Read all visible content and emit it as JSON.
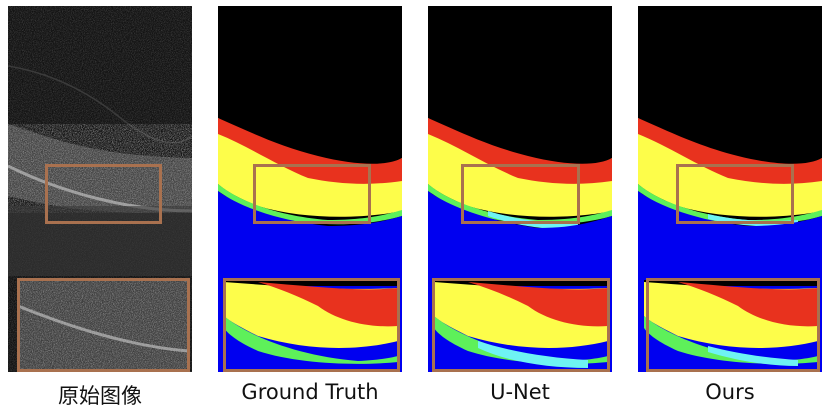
{
  "panels": [
    {
      "caption": "原始图像"
    },
    {
      "caption": "Ground Truth"
    },
    {
      "caption": "U-Net"
    },
    {
      "caption": "Ours"
    }
  ],
  "colors": {
    "background": "#000000",
    "layer_red": "#e8321e",
    "layer_yellow": "#fdfd4a",
    "layer_green": "#5ef05a",
    "layer_cyan": "#6ef3f3",
    "choroid_blue": "#0000f0",
    "roi_box": "#a9714f"
  }
}
